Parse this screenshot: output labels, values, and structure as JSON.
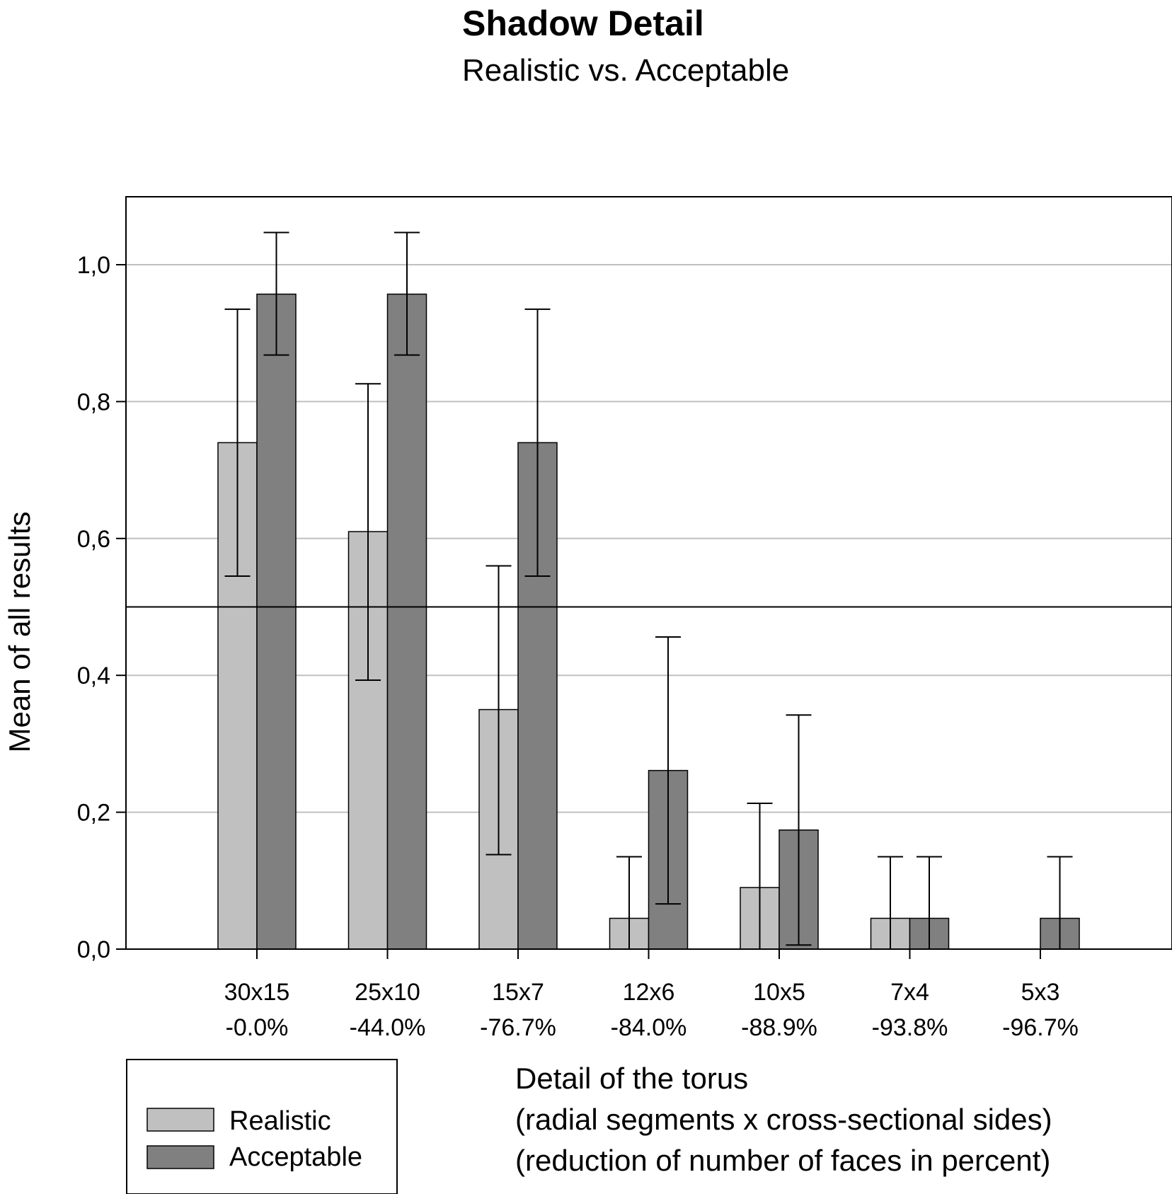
{
  "chart_data": {
    "type": "bar",
    "title": "Shadow Detail",
    "subtitle": "Realistic vs. Acceptable",
    "ylabel": "Mean of all results",
    "xlabel_lines": [
      "Detail of the torus",
      "(radial segments x cross-sectional sides)",
      "(reduction of number of faces in percent)"
    ],
    "ylim": [
      0,
      1.1
    ],
    "yticks": [
      {
        "value": 0.0,
        "label": "0,0"
      },
      {
        "value": 0.2,
        "label": "0,2"
      },
      {
        "value": 0.4,
        "label": "0,4"
      },
      {
        "value": 0.6,
        "label": "0,6"
      },
      {
        "value": 0.8,
        "label": "0,8"
      },
      {
        "value": 1.0,
        "label": "1,0"
      }
    ],
    "grid": true,
    "reference_line": 0.5,
    "categories": [
      {
        "line1": "30x15",
        "line2": "-0.0%"
      },
      {
        "line1": "25x10",
        "line2": "-44.0%"
      },
      {
        "line1": "15x7",
        "line2": "-76.7%"
      },
      {
        "line1": "12x6",
        "line2": "-84.0%"
      },
      {
        "line1": "10x5",
        "line2": "-88.9%"
      },
      {
        "line1": "7x4",
        "line2": "-93.8%"
      },
      {
        "line1": "5x3",
        "line2": "-96.7%"
      }
    ],
    "series": [
      {
        "name": "Realistic",
        "color": "#c0c0c0",
        "values": [
          0.74,
          0.61,
          0.35,
          0.045,
          0.09,
          0.045,
          0.0
        ],
        "err_low": [
          0.545,
          0.393,
          0.138,
          0.0,
          0.0,
          0.0,
          null
        ],
        "err_high": [
          0.935,
          0.826,
          0.56,
          0.135,
          0.213,
          0.135,
          null
        ]
      },
      {
        "name": "Acceptable",
        "color": "#808080",
        "values": [
          0.957,
          0.957,
          0.74,
          0.261,
          0.174,
          0.045,
          0.045
        ],
        "err_low": [
          0.868,
          0.868,
          0.545,
          0.066,
          0.006,
          0.0,
          0.0
        ],
        "err_high": [
          1.047,
          1.047,
          0.935,
          0.456,
          0.342,
          0.135,
          0.135
        ]
      }
    ],
    "legend": "bottom-left"
  }
}
